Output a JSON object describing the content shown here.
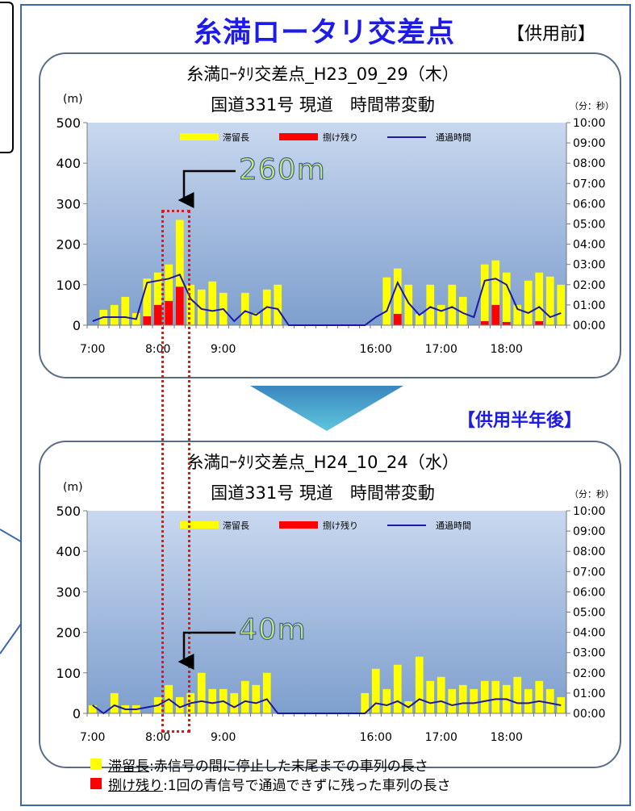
{
  "page": {
    "title": "糸満ロータリ交差点",
    "tag_before": "【供用前】",
    "tag_after": "【供用半年後】"
  },
  "callouts": [
    {
      "label": "260m"
    },
    {
      "label": "40m"
    }
  ],
  "footnotes": [
    {
      "term": "滞留長",
      "desc": ":赤信号の間に停止した末尾までの車列の長さ",
      "color": "#ffff00"
    },
    {
      "term": "捌け残り",
      "desc": ":1回の青信号で通過できずに残った車列の長さ",
      "color": "#ff0000"
    }
  ],
  "colors": {
    "queue": "#ffff00",
    "residual": "#ff0000",
    "passage": "#1a1aa6",
    "plot_top": "#c9d8ef",
    "plot_bottom": "#7e9fcd",
    "title_blue": "#1e1bea",
    "border": "#3f67ad"
  },
  "chart_data": [
    {
      "type": "bar",
      "title": "糸満ﾛｰﾀﾘ交差点_H23_09_29（木）",
      "subtitle": "国道331号 現道　時間帯変動",
      "ylabel": "(m)",
      "y2label": "（分：秒）",
      "ylim": [
        0,
        500
      ],
      "yticks": [
        "0",
        "100",
        "200",
        "300",
        "400",
        "500"
      ],
      "y2ticks": [
        "00:00",
        "01:00",
        "02:00",
        "03:00",
        "04:00",
        "05:00",
        "06:00",
        "07:00",
        "08:00",
        "09:00",
        "10:00"
      ],
      "y2lim_minutes": [
        0,
        10
      ],
      "x_labels": [
        {
          "index": 0,
          "text": "7:00"
        },
        {
          "index": 6,
          "text": "8:00"
        },
        {
          "index": 12,
          "text": "9:00"
        },
        {
          "index": 26,
          "text": "16:00"
        },
        {
          "index": 32,
          "text": "17:00"
        },
        {
          "index": 38,
          "text": "18:00"
        }
      ],
      "legend": [
        "滞留長",
        "捌け残り",
        "通過時間"
      ],
      "legend_position": "top-center",
      "grid": false,
      "series": [
        {
          "name": "滞留長",
          "kind": "bar",
          "values": [
            0,
            38,
            50,
            70,
            30,
            115,
            130,
            150,
            260,
            100,
            88,
            108,
            80,
            0,
            80,
            30,
            88,
            100,
            0,
            0,
            0,
            0,
            0,
            0,
            0,
            0,
            0,
            118,
            140,
            100,
            28,
            100,
            50,
            100,
            70,
            0,
            150,
            160,
            130,
            50,
            110,
            130,
            120,
            100
          ]
        },
        {
          "name": "捌け残り",
          "kind": "bar",
          "values": [
            0,
            0,
            0,
            0,
            0,
            22,
            50,
            60,
            95,
            0,
            0,
            0,
            0,
            0,
            0,
            0,
            0,
            0,
            0,
            0,
            0,
            0,
            0,
            0,
            0,
            0,
            0,
            0,
            28,
            0,
            0,
            0,
            0,
            0,
            0,
            0,
            10,
            50,
            8,
            0,
            0,
            10,
            0,
            0
          ]
        },
        {
          "name": "通過時間",
          "kind": "line",
          "unit": "minutes",
          "values": [
            0.2,
            0.4,
            0.4,
            0.4,
            0.3,
            2.1,
            2.2,
            2.3,
            2.5,
            1.3,
            0.8,
            0.7,
            0.8,
            0.2,
            0.7,
            0.5,
            0.9,
            0.8,
            0.0,
            0.0,
            0.0,
            0.0,
            0.0,
            0.0,
            0.0,
            0.0,
            0.4,
            0.7,
            2.1,
            1.1,
            0.5,
            0.9,
            0.7,
            0.9,
            0.6,
            0.4,
            2.2,
            2.3,
            2.0,
            0.8,
            0.6,
            0.9,
            0.4,
            0.6
          ]
        }
      ]
    },
    {
      "type": "bar",
      "title": "糸満ﾛｰﾀﾘ交差点_H24_10_24（水）",
      "subtitle": "国道331号 現道　時間帯変動",
      "ylabel": "(m)",
      "y2label": "（分：秒）",
      "ylim": [
        0,
        500
      ],
      "yticks": [
        "0",
        "100",
        "200",
        "300",
        "400",
        "500"
      ],
      "y2ticks": [
        "00:00",
        "01:00",
        "02:00",
        "03:00",
        "04:00",
        "05:00",
        "06:00",
        "07:00",
        "08:00",
        "09:00",
        "10:00"
      ],
      "y2lim_minutes": [
        0,
        10
      ],
      "x_labels": [
        {
          "index": 0,
          "text": "7:00"
        },
        {
          "index": 6,
          "text": "8:00"
        },
        {
          "index": 12,
          "text": "9:00"
        },
        {
          "index": 26,
          "text": "16:00"
        },
        {
          "index": 32,
          "text": "17:00"
        },
        {
          "index": 38,
          "text": "18:00"
        }
      ],
      "legend": [
        "滞留長",
        "捌け残り",
        "通過時間"
      ],
      "legend_position": "top-center",
      "grid": false,
      "series": [
        {
          "name": "滞留長",
          "kind": "bar",
          "values": [
            20,
            0,
            50,
            20,
            20,
            0,
            40,
            70,
            40,
            50,
            100,
            60,
            60,
            50,
            80,
            70,
            100,
            0,
            0,
            0,
            0,
            0,
            0,
            0,
            0,
            50,
            110,
            60,
            120,
            30,
            140,
            80,
            90,
            60,
            70,
            60,
            80,
            80,
            70,
            90,
            60,
            80,
            60,
            40
          ]
        },
        {
          "name": "捌け残り",
          "kind": "bar",
          "values": [
            0,
            0,
            0,
            0,
            0,
            0,
            0,
            0,
            0,
            0,
            0,
            0,
            0,
            0,
            0,
            0,
            0,
            0,
            0,
            0,
            0,
            0,
            0,
            0,
            0,
            0,
            0,
            0,
            0,
            0,
            0,
            0,
            0,
            0,
            0,
            0,
            0,
            0,
            0,
            0,
            0,
            0,
            0,
            0
          ]
        },
        {
          "name": "通過時間",
          "kind": "line",
          "unit": "minutes",
          "values": [
            0.4,
            0.0,
            0.4,
            0.2,
            0.2,
            0.3,
            0.4,
            0.7,
            0.3,
            0.5,
            0.6,
            0.5,
            0.6,
            0.3,
            0.6,
            0.5,
            0.7,
            0.0,
            0.0,
            0.0,
            0.0,
            0.0,
            0.0,
            0.0,
            0.0,
            0.0,
            0.5,
            0.4,
            0.6,
            0.3,
            0.7,
            0.5,
            0.6,
            0.4,
            0.5,
            0.5,
            0.6,
            0.7,
            0.7,
            0.5,
            0.5,
            0.6,
            0.5,
            0.4
          ]
        }
      ]
    }
  ]
}
